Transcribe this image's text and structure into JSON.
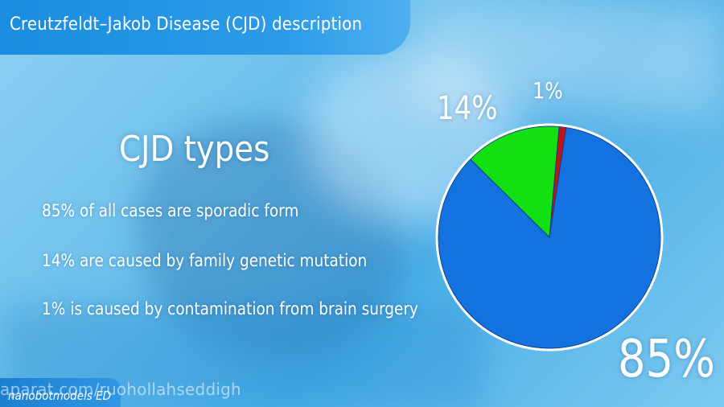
{
  "header": {
    "title": "Creutzfeldt–Jakob Disease (CJD) description"
  },
  "content": {
    "heading": "CJD types",
    "bullets": [
      "85% of all cases are sporadic form",
      "14% are caused by family genetic mutation",
      "1%  is caused by contamination from brain surgery"
    ]
  },
  "chart_data": {
    "type": "pie",
    "categories": [
      "Sporadic",
      "Genetic",
      "Contamination"
    ],
    "values": [
      85,
      14,
      1
    ],
    "labels": [
      "85%",
      "14%",
      "1%"
    ],
    "colors": [
      "#1472e0",
      "#12e012",
      "#c21414"
    ]
  },
  "footer": {
    "watermark": "aparat.com/ruohollahseddigh",
    "brand": "nanobotmodels ED"
  }
}
